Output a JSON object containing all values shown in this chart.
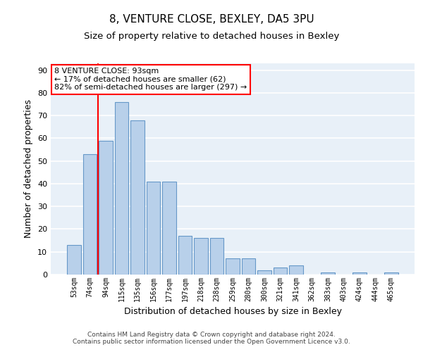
{
  "title": "8, VENTURE CLOSE, BEXLEY, DA5 3PU",
  "subtitle": "Size of property relative to detached houses in Bexley",
  "xlabel": "Distribution of detached houses by size in Bexley",
  "ylabel": "Number of detached properties",
  "categories": [
    "53sqm",
    "74sqm",
    "94sqm",
    "115sqm",
    "135sqm",
    "156sqm",
    "177sqm",
    "197sqm",
    "218sqm",
    "238sqm",
    "259sqm",
    "280sqm",
    "300sqm",
    "321sqm",
    "341sqm",
    "362sqm",
    "383sqm",
    "403sqm",
    "424sqm",
    "444sqm",
    "465sqm"
  ],
  "values": [
    13,
    53,
    59,
    76,
    68,
    41,
    41,
    17,
    16,
    16,
    7,
    7,
    2,
    3,
    4,
    0,
    1,
    0,
    1,
    0,
    1
  ],
  "bar_color": "#b8d0ea",
  "bar_edge_color": "#6698c8",
  "vline_x": 1.5,
  "annotation_text": "8 VENTURE CLOSE: 93sqm\n← 17% of detached houses are smaller (62)\n82% of semi-detached houses are larger (297) →",
  "annotation_box_color": "white",
  "annotation_box_edge_color": "red",
  "vline_color": "red",
  "ylim": [
    0,
    93
  ],
  "yticks": [
    0,
    10,
    20,
    30,
    40,
    50,
    60,
    70,
    80,
    90
  ],
  "title_fontsize": 11,
  "xlabel_fontsize": 9,
  "ylabel_fontsize": 9,
  "tick_fontsize": 8,
  "footer_text": "Contains HM Land Registry data © Crown copyright and database right 2024.\nContains public sector information licensed under the Open Government Licence v3.0.",
  "background_color": "#e8f0f8",
  "grid_color": "white"
}
